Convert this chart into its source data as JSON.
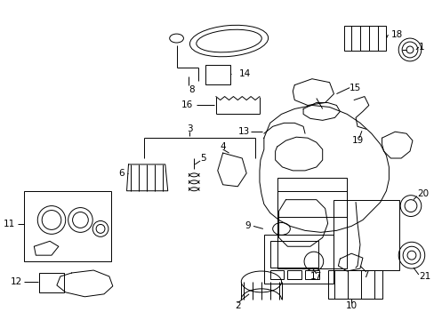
{
  "bg_color": "#ffffff",
  "line_color": "#000000",
  "fig_width": 4.89,
  "fig_height": 3.6,
  "dpi": 100,
  "label_fontsize": 7.5,
  "lw": 0.7
}
